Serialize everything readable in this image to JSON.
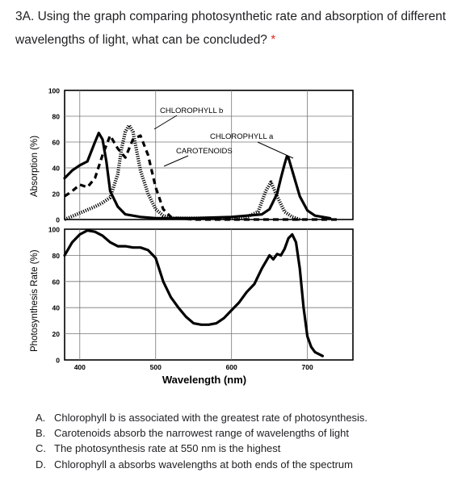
{
  "question": {
    "text": "3A. Using the graph comparing photosynthetic rate and absorption of different wavelengths of light, what can be concluded?",
    "required_marker": "*"
  },
  "options": [
    {
      "letter": "A.",
      "text": "Chlorophyll b is associated with the greatest rate of photosynthesis."
    },
    {
      "letter": "B.",
      "text": "Carotenoids absorb the narrowest range of wavelengths of light"
    },
    {
      "letter": "C.",
      "text": "The photosynthesis rate at 550 nm is the highest"
    },
    {
      "letter": "D.",
      "text": "Chlorophyll a absorbs wavelengths at both ends of the spectrum"
    }
  ],
  "chart_data": [
    {
      "type": "line",
      "title": "",
      "xlabel": "",
      "ylabel": "Absorption (%)",
      "xlim": [
        380,
        760
      ],
      "ylim": [
        0,
        100
      ],
      "yticks": [
        "0",
        "20",
        "40",
        "60",
        "80",
        "100"
      ],
      "grid": true,
      "annotations": [
        "CHLOROPHYLL b",
        "CHLOROPHYLL a",
        "CAROTENOIDS"
      ],
      "series": [
        {
          "name": "CHLOROPHYLL a",
          "style": "solid",
          "x": [
            380,
            390,
            400,
            410,
            420,
            425,
            430,
            435,
            440,
            450,
            460,
            480,
            500,
            550,
            600,
            640,
            650,
            660,
            665,
            670,
            673,
            675,
            680,
            690,
            700,
            710,
            720,
            730
          ],
          "y": [
            32,
            38,
            42,
            45,
            60,
            67,
            62,
            45,
            22,
            10,
            4,
            2,
            1,
            1,
            2,
            4,
            8,
            20,
            32,
            43,
            49,
            48,
            38,
            18,
            7,
            3,
            2,
            1
          ]
        },
        {
          "name": "CHLOROPHYLL b",
          "style": "dotted",
          "x": [
            380,
            400,
            420,
            430,
            440,
            450,
            455,
            460,
            465,
            470,
            480,
            490,
            500,
            510,
            520,
            550,
            600,
            620,
            635,
            645,
            652,
            660,
            670,
            680,
            690
          ],
          "y": [
            0,
            5,
            10,
            13,
            17,
            35,
            55,
            68,
            73,
            68,
            38,
            20,
            8,
            3,
            1,
            1,
            1,
            2,
            6,
            22,
            29,
            18,
            6,
            2,
            0
          ]
        },
        {
          "name": "CAROTENOIDS",
          "style": "dashed",
          "x": [
            380,
            390,
            400,
            410,
            420,
            430,
            440,
            450,
            460,
            470,
            480,
            490,
            500,
            510,
            520,
            530,
            550,
            600,
            650,
            700,
            740
          ],
          "y": [
            18,
            22,
            27,
            25,
            32,
            50,
            65,
            55,
            48,
            62,
            65,
            50,
            25,
            8,
            2,
            1,
            0,
            0,
            0,
            0,
            0
          ]
        }
      ]
    },
    {
      "type": "line",
      "title": "",
      "xlabel": "Wavelength (nm)",
      "ylabel": "Photosynthesis Rate (%)",
      "xlim": [
        380,
        760
      ],
      "ylim": [
        0,
        100
      ],
      "xticks": [
        "400",
        "500",
        "600",
        "700"
      ],
      "yticks": [
        "0",
        "20",
        "40",
        "60",
        "80",
        "100"
      ],
      "grid": true,
      "series": [
        {
          "name": "",
          "style": "solid",
          "x": [
            380,
            390,
            400,
            410,
            420,
            430,
            440,
            450,
            460,
            470,
            480,
            490,
            500,
            510,
            520,
            530,
            540,
            550,
            560,
            570,
            580,
            590,
            600,
            610,
            620,
            630,
            640,
            650,
            655,
            660,
            665,
            670,
            675,
            680,
            685,
            690,
            695,
            700,
            705,
            710,
            720
          ],
          "y": [
            80,
            90,
            96,
            99,
            98,
            95,
            90,
            87,
            87,
            86,
            86,
            84,
            78,
            60,
            48,
            40,
            33,
            28,
            27,
            27,
            28,
            32,
            38,
            44,
            52,
            58,
            70,
            80,
            77,
            81,
            80,
            85,
            93,
            96,
            90,
            70,
            40,
            18,
            10,
            6,
            3
          ]
        }
      ]
    }
  ]
}
